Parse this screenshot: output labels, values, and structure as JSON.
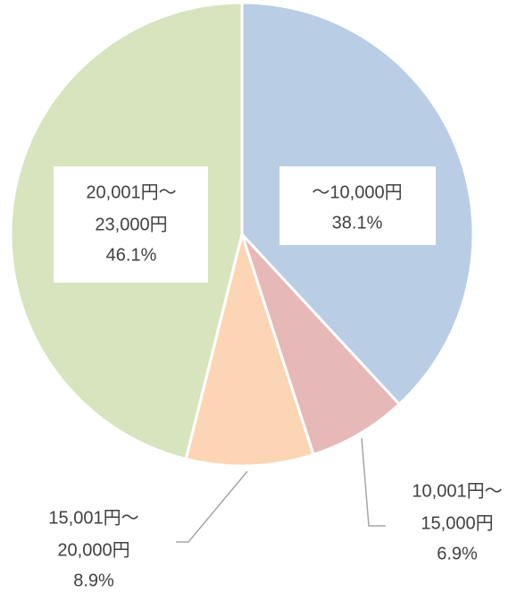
{
  "chart_data": {
    "type": "pie",
    "categories": [
      [
        "～10,000円"
      ],
      [
        "10,001円～",
        "15,000円"
      ],
      [
        "15,001円～",
        "20,000円"
      ],
      [
        "20,001円～",
        "23,000円"
      ]
    ],
    "values": [
      38.1,
      6.9,
      8.9,
      46.1
    ],
    "value_labels": [
      "38.1%",
      "6.9%",
      "8.9%",
      "46.1%"
    ],
    "colors": [
      "#b9cde5",
      "#e6b9b8",
      "#fcd5b5",
      "#d7e4bd"
    ]
  }
}
